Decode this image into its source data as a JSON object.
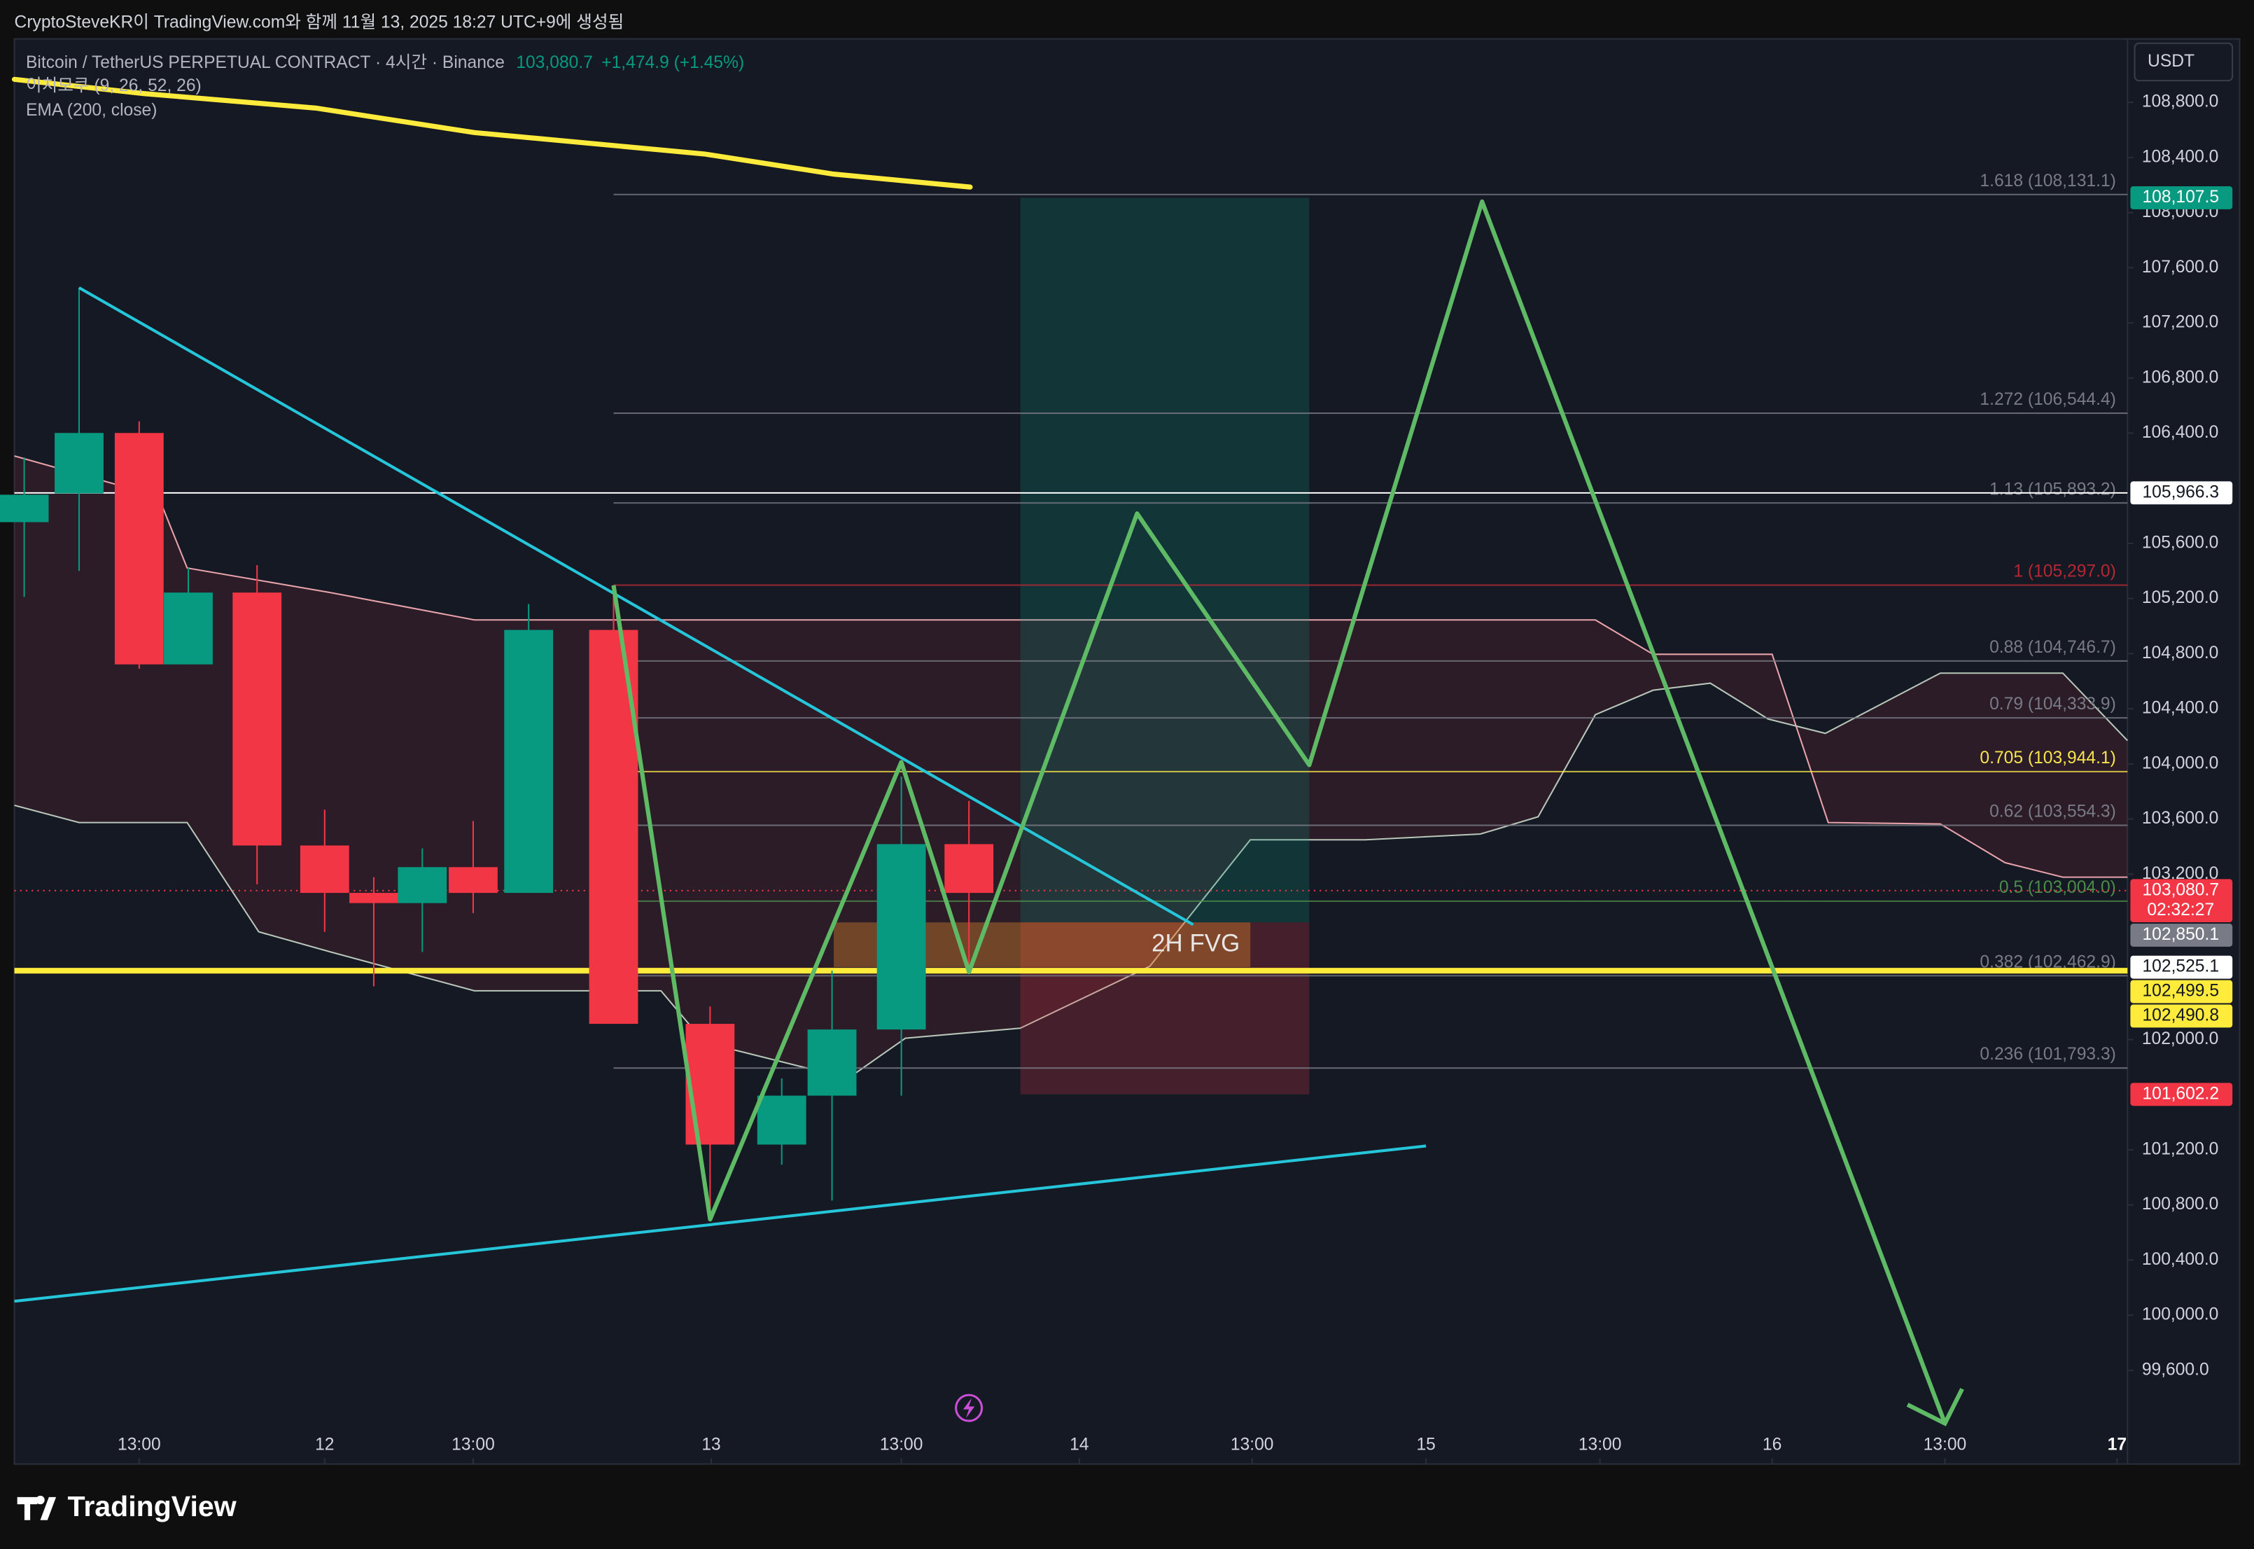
{
  "chart_data": {
    "type": "candlestick",
    "caption": "CryptoSteveKR이 TradingView.com와 함께 11월 13, 2025 18:27 UTC+9에 생성됨",
    "symbol": "Bitcoin / TetherUS PERPETUAL CONTRACT · 4시간 · Binance",
    "last": "103,080.7",
    "change": "+1,474.9 (+1.45%)",
    "indicators": [
      "이치모쿠 (9, 26, 52, 26)",
      "EMA (200, close)"
    ],
    "currency": "USDT",
    "brand": "TradingView",
    "up_color": "#089981",
    "down_color": "#f23645",
    "grid": false,
    "xlim": [
      0,
      36.57
    ],
    "ylim": [
      98920,
      109260
    ],
    "xticks": [
      {
        "value": 2.16,
        "label": "13:00"
      },
      {
        "value": 5.37,
        "label": "12"
      },
      {
        "value": 7.94,
        "label": "13:00"
      },
      {
        "value": 12.06,
        "label": "13"
      },
      {
        "value": 15.35,
        "label": "13:00"
      },
      {
        "value": 18.43,
        "label": "14"
      },
      {
        "value": 21.42,
        "label": "13:00"
      },
      {
        "value": 24.43,
        "label": "15"
      },
      {
        "value": 27.44,
        "label": "13:00"
      },
      {
        "value": 30.42,
        "label": "16"
      },
      {
        "value": 33.41,
        "label": "13:00"
      },
      {
        "value": 36.39,
        "label": "17"
      }
    ],
    "yticks": [
      {
        "value": 108800,
        "label": "108,800.0"
      },
      {
        "value": 108400,
        "label": "108,400.0"
      },
      {
        "value": 108000,
        "label": "108,000.0"
      },
      {
        "value": 107600,
        "label": "107,600.0"
      },
      {
        "value": 107200,
        "label": "107,200.0"
      },
      {
        "value": 106800,
        "label": "106,800.0"
      },
      {
        "value": 106400,
        "label": "106,400.0"
      },
      {
        "value": 105600,
        "label": "105,600.0"
      },
      {
        "value": 105200,
        "label": "105,200.0"
      },
      {
        "value": 104800,
        "label": "104,800.0"
      },
      {
        "value": 104400,
        "label": "104,400.0"
      },
      {
        "value": 104000,
        "label": "104,000.0"
      },
      {
        "value": 103600,
        "label": "103,600.0"
      },
      {
        "value": 103200,
        "label": "103,200.0"
      },
      {
        "value": 102000,
        "label": "102,000.0"
      },
      {
        "value": 101200,
        "label": "101,200.0"
      },
      {
        "value": 100800,
        "label": "100,800.0"
      },
      {
        "value": 100400,
        "label": "100,400.0"
      },
      {
        "value": 100000,
        "label": "100,000.0"
      },
      {
        "value": 99600,
        "label": "99,600.0"
      }
    ],
    "candles": {
      "x": [
        0.17,
        1.12,
        2.16,
        3.01,
        4.2,
        5.37,
        6.22,
        7.06,
        7.94,
        8.9,
        10.37,
        12.04,
        13.28,
        14.15,
        15.35,
        16.52
      ],
      "open": [
        105754,
        105963,
        106401,
        104722,
        105243,
        103408,
        103064,
        102990,
        103251,
        103064,
        104972,
        102114,
        101238,
        101593,
        102073,
        103418
      ],
      "high": [
        106224,
        107455,
        106485,
        105421,
        105442,
        103668,
        103178,
        103387,
        103585,
        105160,
        105264,
        102240,
        101718,
        102500,
        103908,
        103731
      ],
      "low": [
        105212,
        105400,
        104690,
        104722,
        103126,
        102782,
        102386,
        102636,
        102918,
        103064,
        102114,
        100696,
        101092,
        100832,
        101593,
        102532
      ],
      "close": [
        105953,
        106401,
        104722,
        105243,
        103408,
        103064,
        102990,
        103251,
        103064,
        104972,
        102114,
        101238,
        101593,
        102073,
        103418,
        103064
      ]
    },
    "ema": {
      "color": "#ffeb3b",
      "x": [
        0,
        2.24,
        5.22,
        7.96,
        11.94,
        14.18,
        16.54
      ],
      "y": [
        108967,
        108863,
        108758,
        108581,
        108425,
        108279,
        108185
      ]
    },
    "cloud": {
      "fill": "#f23645",
      "upper": {
        "color": "#e8a3ab",
        "x": [
          0,
          2.49,
          2.99,
          5.47,
          7.96,
          17.16,
          27.36,
          28.36,
          30.42,
          31.39,
          33.33,
          34.45,
          35.45,
          36.57
        ],
        "y": [
          106234,
          105942,
          105421,
          105243,
          105045,
          105045,
          105045,
          104795,
          104795,
          103575,
          103564,
          103283,
          103178,
          103178
        ]
      },
      "lower": {
        "color": "#b8c7b9",
        "x": [
          0,
          1.12,
          2.99,
          4.23,
          5.47,
          7.96,
          11.19,
          11.94,
          14.43,
          15.42,
          17.41,
          19.65,
          21.39,
          23.38,
          25.37,
          26.37,
          27.36,
          28.36,
          29.35,
          30.35,
          31.34,
          33.33,
          35.45,
          36.57
        ],
        "y": [
          103700,
          103575,
          103575,
          102782,
          102636,
          102354,
          102354,
          101979,
          101718,
          102010,
          102083,
          102532,
          103449,
          103449,
          103491,
          103616,
          104357,
          104534,
          104586,
          104326,
          104221,
          104659,
          104659,
          104169
        ]
      }
    },
    "projection": {
      "color": "#5fba66",
      "x": [
        10.37,
        12.04,
        15.35,
        16.52,
        19.43,
        22.41,
        25.4,
        33.41
      ],
      "y": [
        105296,
        100696,
        104013,
        102490,
        105817,
        103992,
        108080,
        99215
      ]
    },
    "trendlines": [
      {
        "color": "#26c6da",
        "x": [
          1.12,
          20.4
        ],
        "y": [
          107455,
          102834
        ]
      },
      {
        "color": "#26c6da",
        "x": [
          0,
          24.43
        ],
        "y": [
          100101,
          101228
        ]
      }
    ],
    "fib": {
      "x_start": 10.37,
      "levels": [
        {
          "value": 108131.1,
          "label": "1.618 (108,131.1)",
          "color": "#787b86"
        },
        {
          "value": 106544.4,
          "label": "1.272 (106,544.4)",
          "color": "#787b86"
        },
        {
          "value": 105893.2,
          "label": "1.13 (105,893.2)",
          "color": "#787b86"
        },
        {
          "value": 105297.0,
          "label": "1 (105,297.0)",
          "color": "#b22833"
        },
        {
          "value": 104746.7,
          "label": "0.88 (104,746.7)",
          "color": "#787b86"
        },
        {
          "value": 104333.9,
          "label": "0.79 (104,333.9)",
          "color": "#787b86"
        },
        {
          "value": 103944.1,
          "label": "0.705 (103,944.1)",
          "color": "#f7e34d"
        },
        {
          "value": 103554.3,
          "label": "0.62 (103,554.3)",
          "color": "#787b86"
        },
        {
          "value": 103004.0,
          "label": "0.5 (103,004.0)",
          "color": "#4c8c4a"
        },
        {
          "value": 102462.9,
          "label": "0.382 (102,462.9)",
          "color": "#787b86"
        },
        {
          "value": 101793.3,
          "label": "0.236 (101,793.3)",
          "color": "#787b86"
        }
      ]
    },
    "position": {
      "x": [
        17.41,
        22.41
      ],
      "target": 108107.5,
      "entry": 102850.1,
      "stop": 101602.2
    },
    "fvg": {
      "label": "2H FVG",
      "x": [
        14.18,
        21.39
      ],
      "top": 102850.1,
      "bottom": 102525.1
    },
    "hlines": [
      {
        "value": 105966.3,
        "color": "#ffffff",
        "width": 1
      },
      {
        "value": 102499.5,
        "color": "#ffeb3b",
        "width": 4
      },
      {
        "value": 103080.7,
        "color": "#f23645",
        "width": 1,
        "dotted": true
      }
    ],
    "price_tags": [
      {
        "value": 108107.5,
        "label": "108,107.5",
        "color": "#089981",
        "text_color": "#ffffff"
      },
      {
        "value": 105966.3,
        "label": "105,966.3",
        "color": "#ffffff",
        "text_color": "#131722"
      },
      {
        "value": 103080.7,
        "label": "103,080.7",
        "countdown": "02:32:27",
        "color": "#f23645",
        "text_color": "#ffffff"
      },
      {
        "value": 102850.1,
        "label": "102,850.1",
        "color": "#787b86",
        "text_color": "#ffffff"
      },
      {
        "value": 102525.1,
        "label": "102,525.1",
        "color": "#ffffff",
        "text_color": "#131722"
      },
      {
        "value": 102499.5,
        "label": "102,499.5",
        "color": "#ffeb3b",
        "text_color": "#131722"
      },
      {
        "value": 102490.8,
        "label": "102,490.8",
        "color": "#ffeb3b",
        "text_color": "#131722"
      },
      {
        "value": 101602.2,
        "label": "101,602.2",
        "color": "#f23645",
        "text_color": "#ffffff"
      }
    ]
  }
}
